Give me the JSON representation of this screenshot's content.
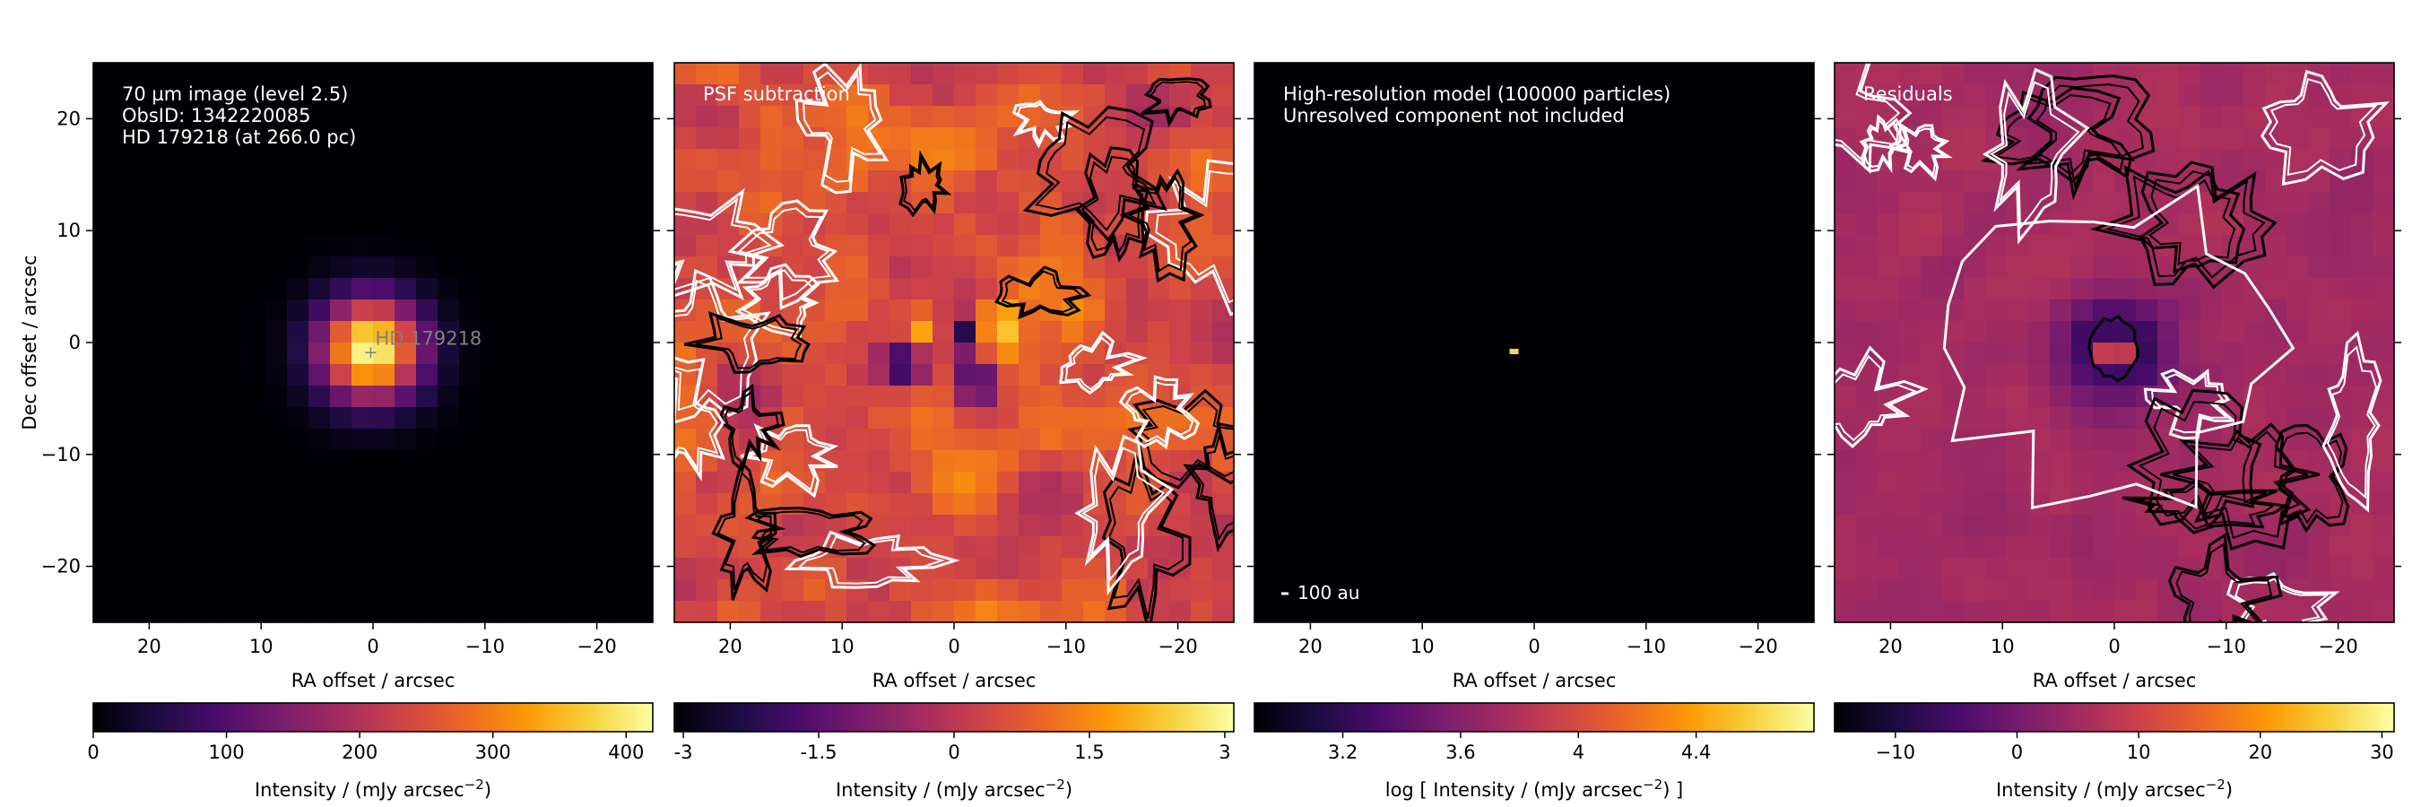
{
  "figure": {
    "background": "#ffffff"
  },
  "colormap": [
    "#000004",
    "#1b0c41",
    "#4a0c6b",
    "#781c6d",
    "#a52c60",
    "#cf4446",
    "#ed6925",
    "#fb9b06",
    "#f7d13d",
    "#fcffa4"
  ],
  "chart_data": [
    {
      "type": "heatmap",
      "panel": "image",
      "annotation_lines": [
        "70 µm image (level 2.5)",
        "ObsID: 1342220085",
        "HD 179218 (at 266.0 pc)"
      ],
      "source_label": "HD 179218",
      "xlabel": "RA offset / arcsec",
      "ylabel": "Dec offset / arcsec",
      "xlim": [
        25,
        -25
      ],
      "ylim": [
        -25,
        25
      ],
      "x_ticks": [
        20,
        10,
        0,
        -10,
        -20
      ],
      "y_ticks": [
        20,
        10,
        0,
        -10,
        -20
      ],
      "x_tick_labels": [
        "20",
        "10",
        "0",
        "−10",
        "−20"
      ],
      "y_tick_labels": [
        "20",
        "10",
        "0",
        "−10",
        "−20"
      ],
      "colorbar": {
        "label": "Intensity / (mJy arcsec",
        "label_sup": "−2",
        "label_tail": ")",
        "range": [
          0,
          420
        ],
        "ticks": [
          0,
          100,
          200,
          300,
          400
        ],
        "tick_labels": [
          "0",
          "100",
          "200",
          "300",
          "400"
        ]
      }
    },
    {
      "type": "heatmap",
      "panel": "psf_subtraction",
      "annotation_lines": [
        "PSF subtraction"
      ],
      "xlabel": "RA offset / arcsec",
      "xlim": [
        25,
        -25
      ],
      "ylim": [
        -25,
        25
      ],
      "x_ticks": [
        20,
        10,
        0,
        -10,
        -20
      ],
      "x_tick_labels": [
        "20",
        "10",
        "0",
        "−10",
        "−20"
      ],
      "contours": {
        "white": "positive",
        "black": "negative"
      },
      "colorbar": {
        "label": "Intensity / (mJy arcsec",
        "label_sup": "−2",
        "label_tail": ")",
        "range": [
          -3.1,
          3.1
        ],
        "ticks": [
          -3,
          -1.5,
          0,
          1.5,
          3
        ],
        "tick_labels": [
          "-3",
          "-1.5",
          "0",
          "1.5",
          "3"
        ]
      }
    },
    {
      "type": "heatmap",
      "panel": "model",
      "annotation_lines": [
        "High-resolution model (100000 particles)",
        "Unresolved component not included"
      ],
      "scalebar_label": "100 au",
      "xlabel": "RA offset / arcsec",
      "xlim": [
        25,
        -25
      ],
      "ylim": [
        -25,
        25
      ],
      "x_ticks": [
        20,
        10,
        0,
        -10,
        -20
      ],
      "x_tick_labels": [
        "20",
        "10",
        "0",
        "−10",
        "−20"
      ],
      "colorbar": {
        "label": "log [ Intensity / (mJy arcsec",
        "label_sup": "−2",
        "label_tail": ") ]",
        "range": [
          2.9,
          4.8
        ],
        "ticks": [
          3.2,
          3.6,
          4.0,
          4.4
        ],
        "tick_labels": [
          "3.2",
          "3.6",
          "4",
          "4.4"
        ]
      }
    },
    {
      "type": "heatmap",
      "panel": "residuals",
      "annotation_lines": [
        "Residuals"
      ],
      "xlabel": "RA offset / arcsec",
      "xlim": [
        25,
        -25
      ],
      "ylim": [
        -25,
        25
      ],
      "x_ticks": [
        20,
        10,
        0,
        -10,
        -20
      ],
      "x_tick_labels": [
        "20",
        "10",
        "0",
        "−10",
        "−20"
      ],
      "contours": {
        "white": "positive",
        "black": "negative"
      },
      "colorbar": {
        "label": "Intensity / (mJy arcsec",
        "label_sup": "−2",
        "label_tail": ")",
        "range": [
          -15,
          31
        ],
        "ticks": [
          -10,
          0,
          10,
          20,
          30
        ],
        "tick_labels": [
          "−10",
          "0",
          "10",
          "20",
          "30"
        ]
      }
    }
  ]
}
